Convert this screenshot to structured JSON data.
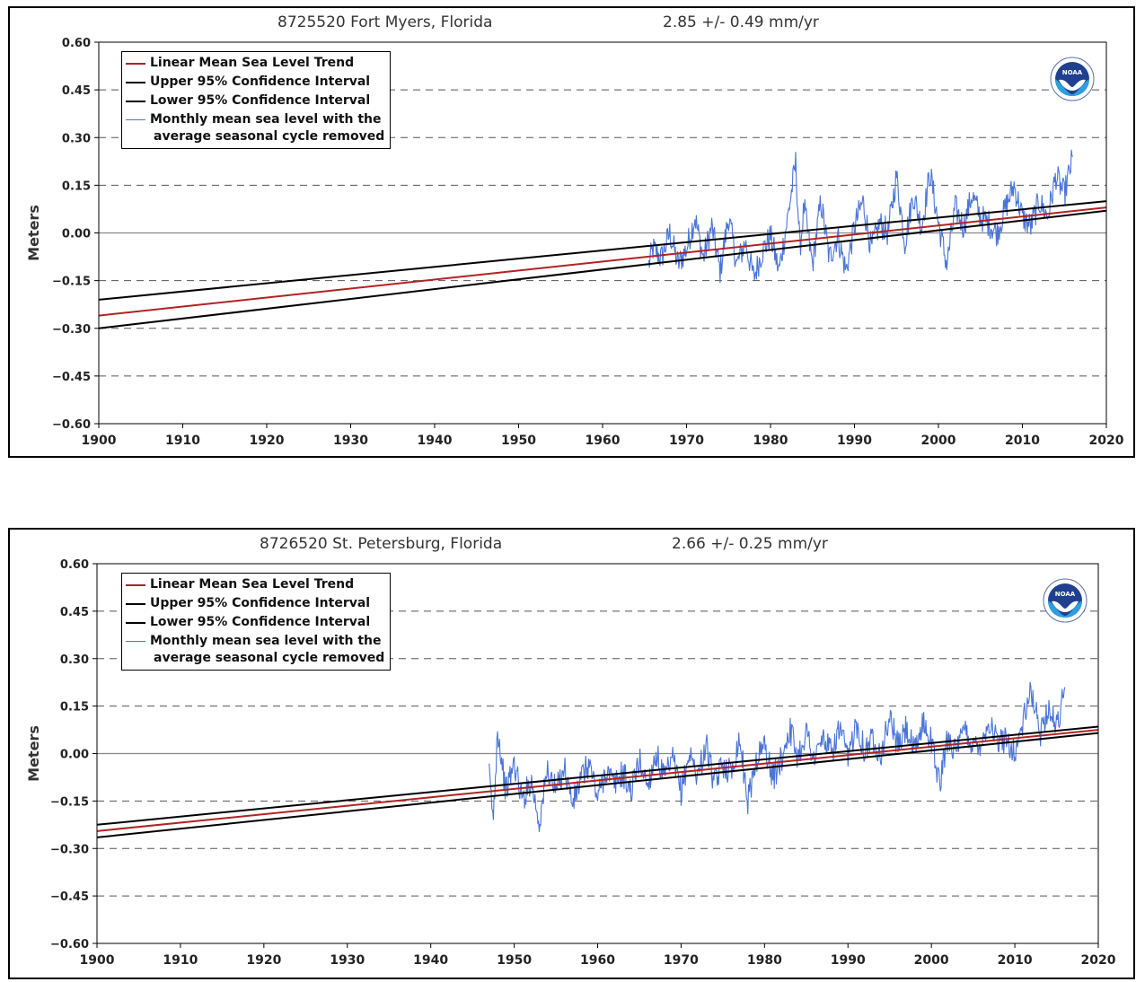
{
  "chart_data": [
    {
      "type": "line",
      "title": "8725520 Fort Myers, Florida",
      "trend_text": "2.85 +/-  0.49 mm/yr",
      "ylabel": "Meters",
      "xlim": [
        1900,
        2020
      ],
      "ylim": [
        -0.6,
        0.6
      ],
      "x_ticks": [
        "1900",
        "1910",
        "1920",
        "1930",
        "1940",
        "1950",
        "1960",
        "1970",
        "1980",
        "1990",
        "2000",
        "2010",
        "2020"
      ],
      "y_ticks": [
        "0.60",
        "0.45",
        "0.30",
        "0.15",
        "0.00",
        "-0.15",
        "-0.30",
        "-0.45",
        "-0.60"
      ],
      "grid": "dashed horizontal",
      "legend_position": "top-left",
      "legend": [
        {
          "label": "Linear Mean Sea Level Trend",
          "color": "#b22222"
        },
        {
          "label": "Upper 95% Confidence Interval",
          "color": "#000000"
        },
        {
          "label": "Lower 95% Confidence Interval",
          "color": "#000000"
        },
        {
          "label": "Monthly mean sea level with the",
          "label2": "average seasonal cycle removed",
          "color": "#4a74d8"
        }
      ],
      "series": [
        {
          "name": "Linear Mean Sea Level Trend",
          "x": [
            1900,
            2020
          ],
          "y": [
            -0.26,
            0.08
          ],
          "color": "#b22222"
        },
        {
          "name": "Upper 95% Confidence Interval",
          "x": [
            1900,
            2020
          ],
          "y": [
            -0.21,
            0.1
          ],
          "color": "#000000"
        },
        {
          "name": "Lower 95% Confidence Interval",
          "x": [
            1900,
            2020
          ],
          "y": [
            -0.3,
            0.07
          ],
          "color": "#000000"
        },
        {
          "name": "Monthly mean sea level with the average seasonal cycle removed",
          "color": "#4a74d8",
          "x": [
            1965.5,
            1966,
            1967,
            1968,
            1969,
            1970,
            1971,
            1972,
            1973,
            1974,
            1975,
            1976,
            1977,
            1978,
            1979,
            1980,
            1981,
            1982,
            1983,
            1983.5,
            1984,
            1985,
            1986,
            1987,
            1988,
            1989,
            1990,
            1991,
            1992,
            1993,
            1994,
            1995,
            1996,
            1997,
            1998,
            1999,
            2000,
            2001,
            2002,
            2003,
            2004,
            2005,
            2006,
            2007,
            2008,
            2009,
            2010,
            2011,
            2012,
            2013,
            2014,
            2015,
            2016
          ],
          "y": [
            -0.1,
            -0.05,
            -0.08,
            0.0,
            -0.1,
            -0.05,
            0.05,
            -0.08,
            0.02,
            -0.12,
            0.05,
            -0.1,
            -0.03,
            -0.14,
            -0.06,
            -0.01,
            -0.12,
            0.04,
            0.22,
            -0.05,
            0.08,
            -0.1,
            0.1,
            -0.08,
            -0.01,
            -0.12,
            0.02,
            0.1,
            -0.05,
            0.03,
            0.0,
            0.18,
            -0.03,
            0.12,
            0.02,
            0.19,
            0.03,
            -0.1,
            0.08,
            0.02,
            0.12,
            0.05,
            0.03,
            0.0,
            0.08,
            0.15,
            0.05,
            0.02,
            0.1,
            0.05,
            0.18,
            0.12,
            0.24
          ]
        }
      ]
    },
    {
      "type": "line",
      "title": "8726520 St. Petersburg, Florida",
      "trend_text": "2.66 +/-  0.25 mm/yr",
      "ylabel": "Meters",
      "xlim": [
        1900,
        2020
      ],
      "ylim": [
        -0.6,
        0.6
      ],
      "x_ticks": [
        "1900",
        "1910",
        "1920",
        "1930",
        "1940",
        "1950",
        "1960",
        "1970",
        "1980",
        "1990",
        "2000",
        "2010",
        "2020"
      ],
      "y_ticks": [
        "0.60",
        "0.45",
        "0.30",
        "0.15",
        "0.00",
        "-0.15",
        "-0.30",
        "-0.45",
        "-0.60"
      ],
      "grid": "dashed horizontal",
      "legend_position": "top-left",
      "legend": [
        {
          "label": "Linear Mean Sea Level Trend",
          "color": "#b22222"
        },
        {
          "label": "Upper 95% Confidence Interval",
          "color": "#000000"
        },
        {
          "label": "Lower 95% Confidence Interval",
          "color": "#000000"
        },
        {
          "label": "Monthly mean sea level with the",
          "label2": "average seasonal cycle removed",
          "color": "#4a74d8"
        }
      ],
      "series": [
        {
          "name": "Linear Mean Sea Level Trend",
          "x": [
            1900,
            2020
          ],
          "y": [
            -0.245,
            0.075
          ],
          "color": "#b22222"
        },
        {
          "name": "Upper 95% Confidence Interval",
          "x": [
            1900,
            2020
          ],
          "y": [
            -0.225,
            0.085
          ],
          "color": "#000000"
        },
        {
          "name": "Lower 95% Confidence Interval",
          "x": [
            1900,
            2020
          ],
          "y": [
            -0.265,
            0.065
          ],
          "color": "#000000"
        },
        {
          "name": "Monthly mean sea level with the average seasonal cycle removed",
          "color": "#4a74d8",
          "x": [
            1947,
            1947.5,
            1948,
            1949,
            1950,
            1951,
            1952,
            1953,
            1954,
            1955,
            1956,
            1957,
            1958,
            1959,
            1960,
            1961,
            1962,
            1963,
            1964,
            1965,
            1966,
            1967,
            1968,
            1969,
            1970,
            1971,
            1972,
            1973,
            1974,
            1975,
            1976,
            1977,
            1978,
            1979,
            1980,
            1981,
            1982,
            1983,
            1984,
            1985,
            1986,
            1987,
            1988,
            1989,
            1990,
            1991,
            1992,
            1993,
            1994,
            1995,
            1996,
            1997,
            1998,
            1999,
            2000,
            2001,
            2002,
            2003,
            2004,
            2005,
            2006,
            2007,
            2008,
            2009,
            2010,
            2011,
            2012,
            2013,
            2014,
            2015,
            2016
          ],
          "y": [
            -0.07,
            -0.21,
            0.08,
            -0.12,
            -0.03,
            -0.15,
            -0.08,
            -0.22,
            -0.05,
            -0.12,
            -0.04,
            -0.16,
            -0.08,
            -0.03,
            -0.14,
            -0.05,
            -0.1,
            -0.06,
            -0.12,
            -0.02,
            -0.1,
            0.0,
            -0.08,
            -0.02,
            -0.12,
            0.0,
            -0.07,
            0.03,
            -0.1,
            -0.03,
            -0.06,
            0.05,
            -0.15,
            -0.02,
            0.03,
            -0.08,
            -0.02,
            0.08,
            -0.01,
            0.07,
            -0.02,
            0.05,
            0.0,
            0.08,
            -0.02,
            0.1,
            0.01,
            0.05,
            0.0,
            0.12,
            0.02,
            0.08,
            0.0,
            0.1,
            0.04,
            -0.1,
            0.06,
            0.0,
            0.08,
            0.02,
            0.04,
            0.1,
            0.03,
            0.05,
            0.0,
            0.1,
            0.2,
            0.06,
            0.15,
            0.08,
            0.21
          ]
        }
      ]
    }
  ]
}
